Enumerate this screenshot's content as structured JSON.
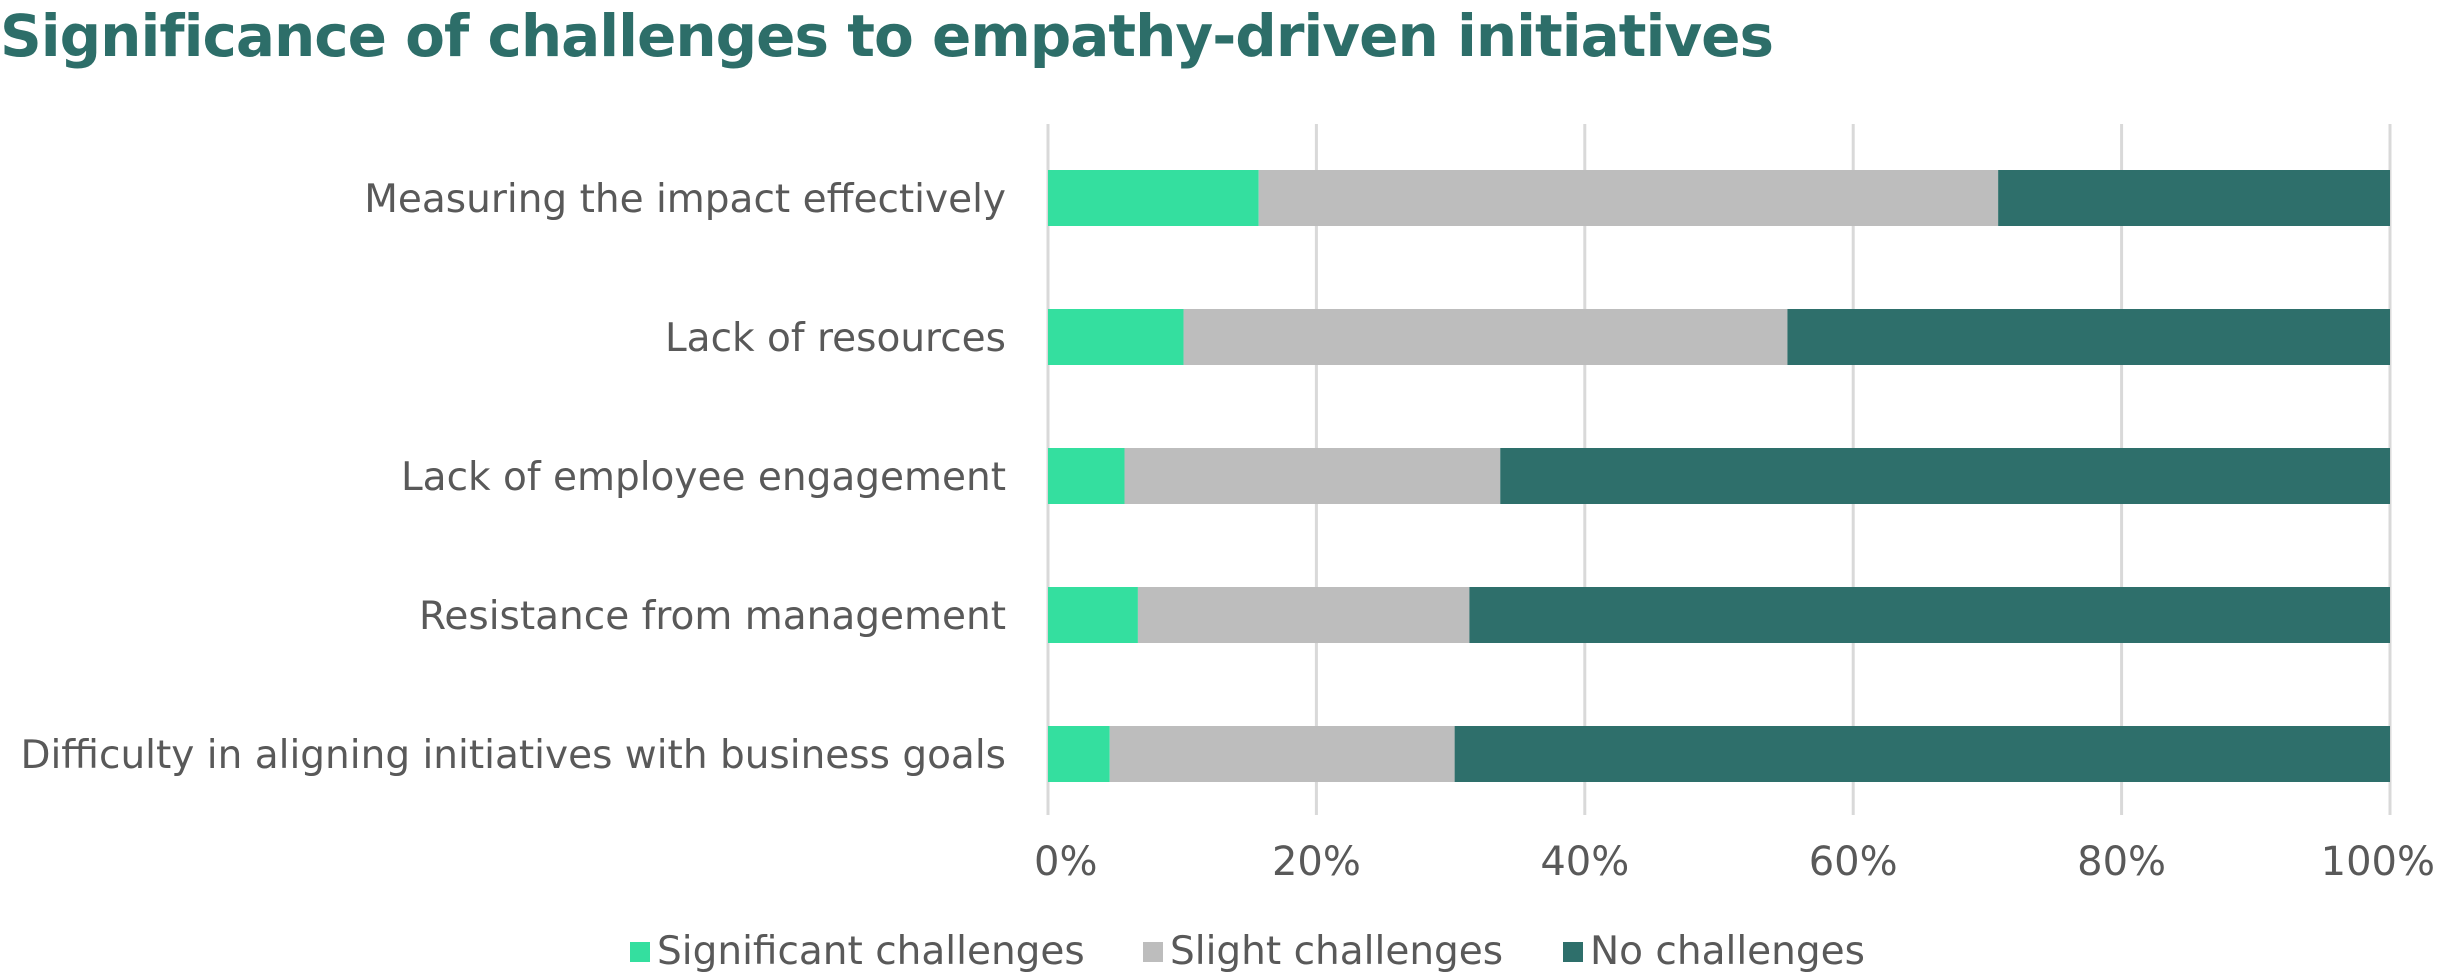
{
  "colors": {
    "significant": "#34df9f",
    "slight": "#bdbdbd",
    "none": "#2e6f6b",
    "title": "#2d6e69",
    "text": "#595959",
    "grid": "#d9d9d9"
  },
  "chart_data": {
    "type": "bar",
    "orientation": "horizontal",
    "stacked": "percent",
    "title": "Significance of challenges to empathy-driven initiatives",
    "xlabel": "",
    "ylabel": "",
    "xlim": [
      0,
      100
    ],
    "x_ticks": [
      "0%",
      "20%",
      "40%",
      "60%",
      "80%",
      "100%"
    ],
    "grid": "vertical",
    "legend_position": "bottom",
    "categories": [
      "Measuring the impact effectively",
      "Lack of resources",
      "Lack of employee engagement",
      "Resistance from management",
      "Difficulty in aligning initiatives with business goals"
    ],
    "series": [
      {
        "name": "Significant challenges",
        "color": "#34df9f",
        "values": [
          15.7,
          10.1,
          5.7,
          6.7,
          4.6
        ]
      },
      {
        "name": "Slight challenges",
        "color": "#bdbdbd",
        "values": [
          55.1,
          45.0,
          28.0,
          24.7,
          25.7
        ]
      },
      {
        "name": "No challenges",
        "color": "#2e6f6b",
        "values": [
          29.2,
          44.9,
          66.3,
          68.6,
          69.7
        ]
      }
    ]
  }
}
